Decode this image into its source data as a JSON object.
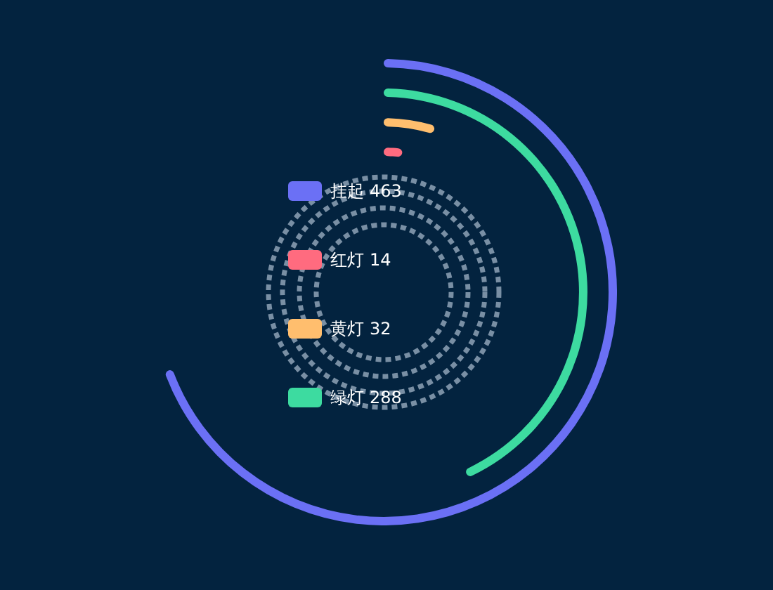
{
  "chart_data": {
    "type": "other",
    "categories": [
      "挂起",
      "红灯",
      "黄灯",
      "绿灯"
    ],
    "values": [
      463,
      14,
      32,
      288
    ],
    "colors": [
      "#6b70f5",
      "#ff6b7f",
      "#ffbe6e",
      "#3ddba0"
    ],
    "value_labels": [
      "463",
      "14",
      "32",
      "288"
    ]
  }
}
